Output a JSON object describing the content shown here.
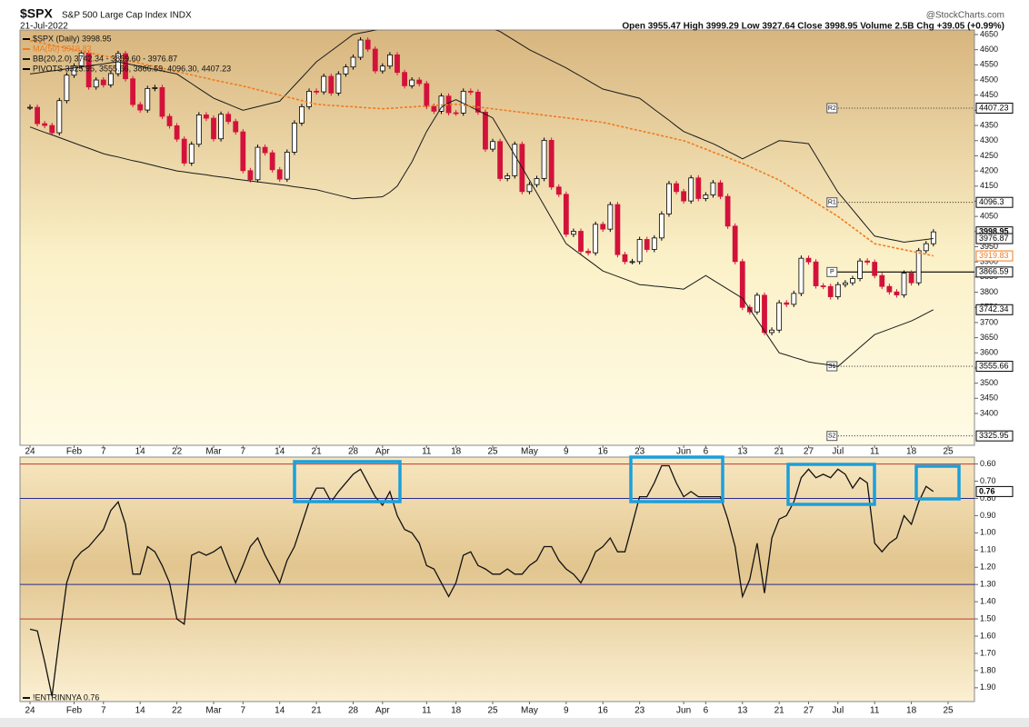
{
  "header": {
    "symbol": "$SPX",
    "name": "S&P 500 Large Cap Index INDX",
    "date": "21-Jul-2022",
    "quote": "Open 3955.47 High 3999.29 Low 3927.64 Close 3998.95 Volume 2.5B Chg +39.05 (+0.99%)",
    "brand": "@StockCharts.com"
  },
  "chart_data": [
    {
      "type": "candlestick",
      "categories": [
        "24",
        null,
        null,
        null,
        null,
        null,
        "Feb",
        null,
        null,
        null,
        "7",
        null,
        null,
        null,
        null,
        "14",
        null,
        null,
        null,
        null,
        "22",
        null,
        null,
        null,
        null,
        "Mar",
        null,
        null,
        null,
        "7",
        null,
        null,
        null,
        null,
        "14",
        null,
        null,
        null,
        null,
        "21",
        null,
        null,
        null,
        null,
        "28",
        null,
        null,
        null,
        "Apr",
        null,
        null,
        null,
        null,
        null,
        "11",
        null,
        null,
        null,
        "18",
        null,
        null,
        null,
        null,
        "25",
        null,
        null,
        null,
        null,
        "May",
        null,
        null,
        null,
        null,
        "9",
        null,
        null,
        null,
        null,
        "16",
        null,
        null,
        null,
        null,
        "23",
        null,
        null,
        null,
        null,
        null,
        "Jun",
        null,
        null,
        "6",
        null,
        null,
        null,
        null,
        "13",
        null,
        null,
        null,
        null,
        "21",
        null,
        null,
        null,
        "27",
        null,
        null,
        null,
        "Jul",
        null,
        null,
        null,
        null,
        "11",
        null,
        null,
        null,
        null,
        "18",
        null,
        null,
        null,
        null,
        "25"
      ],
      "series": [
        {
          "name": "$SPX (Daily) 3998.95",
          "color": "#000000",
          "down_color": "#d3123b",
          "up_color": "#ffffff",
          "values": [
            4410,
            4356,
            4350,
            4326,
            4432,
            4516,
            4546,
            4589,
            4477,
            4500,
            4484,
            4521,
            4587,
            4504,
            4419,
            4401,
            4472,
            4475,
            4380,
            4349,
            4305,
            4226,
            4288,
            4385,
            4374,
            4306,
            4387,
            4363,
            4329,
            4201,
            4171,
            4278,
            4260,
            4204,
            4173,
            4262,
            4358,
            4412,
            4463,
            4461,
            4512,
            4457,
            4520,
            4543,
            4575,
            4632,
            4602,
            4530,
            4546,
            4583,
            4525,
            4481,
            4500,
            4488,
            4413,
            4397,
            4447,
            4392,
            4391,
            4463,
            4460,
            4394,
            4272,
            4297,
            4175,
            4184,
            4288,
            4132,
            4155,
            4175,
            4301,
            4147,
            4123,
            3991,
            4001,
            3935,
            3930,
            4024,
            4008,
            4089,
            3924,
            3901,
            3901,
            3974,
            3941,
            3979,
            4058,
            4158,
            4132,
            4101,
            4177,
            4109,
            4121,
            4161,
            4116,
            4018,
            3901,
            3750,
            3735,
            3790,
            3667,
            3675,
            3765,
            3760,
            3796,
            3912,
            3900,
            3821,
            3819,
            3785,
            3825,
            3831,
            3845,
            3903,
            3899,
            3855,
            3819,
            3801,
            3791,
            3863,
            3831,
            3937,
            3960,
            3998.95,
            null,
            null
          ]
        },
        {
          "name": "MA(50) 3919.83",
          "color": "#f07b1f",
          "values": [
            4630,
            4625,
            4620,
            4615,
            4610,
            4605,
            4600,
            4595,
            4590,
            4585,
            4580,
            4575,
            4570,
            4565,
            4560,
            4555,
            4550,
            4544,
            4539,
            4533,
            4528,
            4522,
            4517,
            4511,
            4506,
            4500,
            4495,
            4490,
            4485,
            4480,
            4474,
            4468,
            4462,
            4456,
            4450,
            4444,
            4438,
            4432,
            4426,
            4420,
            4418,
            4416,
            4415,
            4413,
            4412,
            4410,
            4408,
            4407,
            4405,
            4407,
            4408,
            4410,
            4411,
            4413,
            4414,
            4416,
            4417,
            4419,
            4420,
            4417,
            4414,
            4411,
            4408,
            4405,
            4402,
            4399,
            4396,
            4393,
            4390,
            4387,
            4384,
            4381,
            4378,
            4375,
            4372,
            4369,
            4366,
            4363,
            4360,
            4355,
            4349,
            4344,
            4338,
            4333,
            4327,
            4322,
            4316,
            4311,
            4305,
            4300,
            4291,
            4281,
            4272,
            4262,
            4253,
            4244,
            4234,
            4225,
            4214,
            4203,
            4192,
            4181,
            4170,
            4155,
            4140,
            4125,
            4110,
            4095,
            4080,
            4065,
            4050,
            4032,
            4014,
            3996,
            3978,
            3960,
            3955,
            3950,
            3945,
            3940,
            3935,
            3930,
            3925,
            3919.83,
            null,
            null
          ]
        },
        {
          "name": "BB(20,2.0) 3742.34 - 3859.60 - 3976.87",
          "color": "#1a1a1a",
          "values": [
            4520,
            4523,
            4527,
            4530,
            4533,
            4537,
            4540,
            4543,
            4547,
            4550,
            4553,
            4557,
            4560,
            4555,
            4550,
            4545,
            4540,
            4535,
            4530,
            4525,
            4520,
            4504,
            4488,
            4472,
            4456,
            4440,
            4430,
            4420,
            4410,
            4400,
            4406,
            4412,
            4418,
            4424,
            4430,
            4456,
            4482,
            4508,
            4534,
            4560,
            4578,
            4596,
            4614,
            4632,
            4650,
            4655,
            4660,
            4665,
            4670,
            4670,
            4670,
            4670,
            4670,
            4670,
            4670,
            4670,
            4670,
            4670,
            4670,
            4670,
            4670,
            4670,
            4670,
            4670,
            4660,
            4645,
            4630,
            4615,
            4600,
            4588,
            4576,
            4564,
            4552,
            4540,
            4526,
            4512,
            4498,
            4484,
            4470,
            4464,
            4458,
            4452,
            4446,
            4440,
            4422,
            4403,
            4385,
            4367,
            4348,
            4330,
            4320,
            4310,
            4300,
            4290,
            4278,
            4265,
            4253,
            4240,
            4252,
            4264,
            4276,
            4288,
            4300,
            4298,
            4295,
            4293,
            4290,
            4250,
            4210,
            4170,
            4130,
            4101,
            4072,
            4043,
            4014,
            3985,
            3980,
            3975,
            3970,
            3965,
            3968,
            3971,
            3974,
            3976.87,
            null,
            null
          ],
          "lower": [
            4345,
            4336,
            4327,
            4319,
            4310,
            4301,
            4292,
            4283,
            4275,
            4266,
            4257,
            4251,
            4246,
            4240,
            4234,
            4229,
            4223,
            4217,
            4211,
            4206,
            4200,
            4197,
            4193,
            4190,
            4187,
            4183,
            4180,
            4177,
            4173,
            4170,
            4167,
            4164,
            4161,
            4158,
            4155,
            4152,
            4148,
            4145,
            4141,
            4138,
            4132,
            4126,
            4120,
            4114,
            4108,
            4110,
            4112,
            4113,
            4115,
            4130,
            4150,
            4190,
            4230,
            4280,
            4330,
            4370,
            4410,
            4425,
            4435,
            4423,
            4411,
            4399,
            4387,
            4375,
            4334,
            4293,
            4252,
            4211,
            4170,
            4128,
            4086,
            4044,
            4002,
            3960,
            3942,
            3924,
            3906,
            3888,
            3870,
            3861,
            3852,
            3843,
            3834,
            3825,
            3823,
            3820,
            3818,
            3815,
            3813,
            3810,
            3825,
            3840,
            3855,
            3840,
            3825,
            3810,
            3795,
            3780,
            3744,
            3708,
            3672,
            3636,
            3600,
            3593,
            3585,
            3578,
            3570,
            3566,
            3563,
            3559,
            3555,
            3576,
            3597,
            3618,
            3639,
            3660,
            3669,
            3678,
            3687,
            3696,
            3705,
            3717,
            3730,
            3742.34,
            null,
            null
          ]
        }
      ],
      "pivots": {
        "name": "PIVOTS 3325.95, 3555.66, 3866.59, 4096.30, 4407.23",
        "labels": [
          "S2",
          "S1",
          "P",
          "R1",
          "R2"
        ],
        "values": [
          3325.95,
          3555.66,
          3866.59,
          4096.3,
          4407.23
        ],
        "color": "#000000"
      },
      "ylim": [
        3295,
        4665
      ],
      "yticks": [
        3400,
        3450,
        3500,
        3550,
        3600,
        3650,
        3700,
        3750,
        3800,
        3850,
        3900,
        3950,
        4000,
        4050,
        4100,
        4150,
        4200,
        4250,
        4300,
        4350,
        4400,
        4450,
        4500,
        4550,
        4600,
        4650
      ]
    },
    {
      "type": "line",
      "categories": [
        "24",
        null,
        null,
        null,
        null,
        null,
        "Feb",
        null,
        null,
        null,
        "7",
        null,
        null,
        null,
        null,
        "14",
        null,
        null,
        null,
        null,
        "22",
        null,
        null,
        null,
        null,
        "Mar",
        null,
        null,
        null,
        "7",
        null,
        null,
        null,
        null,
        "14",
        null,
        null,
        null,
        null,
        "21",
        null,
        null,
        null,
        null,
        "28",
        null,
        null,
        null,
        "Apr",
        null,
        null,
        null,
        null,
        null,
        "11",
        null,
        null,
        null,
        "18",
        null,
        null,
        null,
        null,
        "25",
        null,
        null,
        null,
        null,
        "May",
        null,
        null,
        null,
        null,
        "9",
        null,
        null,
        null,
        null,
        "16",
        null,
        null,
        null,
        null,
        "23",
        null,
        null,
        null,
        null,
        null,
        "Jun",
        null,
        null,
        "6",
        null,
        null,
        null,
        null,
        "13",
        null,
        null,
        null,
        null,
        "21",
        null,
        null,
        null,
        "27",
        null,
        null,
        null,
        "Jul",
        null,
        null,
        null,
        null,
        "11",
        null,
        null,
        null,
        null,
        "18",
        null,
        null,
        null,
        null,
        "25"
      ],
      "series": [
        {
          "name": "!ENTRINNYA 0.76",
          "color": "#111111",
          "values": [
            1.56,
            1.57,
            1.75,
            1.95,
            1.61,
            1.29,
            1.16,
            1.11,
            1.08,
            1.03,
            0.98,
            0.87,
            0.82,
            0.95,
            1.24,
            1.24,
            1.08,
            1.11,
            1.19,
            1.29,
            1.5,
            1.53,
            1.13,
            1.11,
            1.13,
            1.11,
            1.08,
            1.19,
            1.29,
            1.19,
            1.08,
            1.03,
            1.13,
            1.21,
            1.29,
            1.16,
            1.08,
            0.95,
            0.82,
            0.74,
            0.74,
            0.82,
            0.76,
            0.71,
            0.66,
            0.63,
            0.71,
            0.79,
            0.84,
            0.76,
            0.9,
            0.98,
            1.0,
            1.06,
            1.19,
            1.21,
            1.29,
            1.37,
            1.29,
            1.13,
            1.11,
            1.19,
            1.21,
            1.24,
            1.24,
            1.21,
            1.24,
            1.24,
            1.19,
            1.16,
            1.08,
            1.08,
            1.16,
            1.21,
            1.24,
            1.29,
            1.21,
            1.11,
            1.08,
            1.03,
            1.11,
            1.11,
            0.95,
            0.79,
            0.79,
            0.71,
            0.61,
            0.61,
            0.71,
            0.79,
            0.76,
            0.79,
            0.79,
            0.79,
            0.79,
            0.92,
            1.08,
            1.37,
            1.27,
            1.06,
            1.35,
            1.03,
            0.92,
            0.9,
            0.82,
            0.68,
            0.63,
            0.68,
            0.66,
            0.68,
            0.63,
            0.66,
            0.74,
            0.68,
            0.71,
            1.06,
            1.11,
            1.06,
            1.03,
            0.9,
            0.95,
            0.82,
            0.73,
            0.76,
            null,
            null
          ]
        }
      ],
      "ref_lines": [
        {
          "value": 0.6,
          "color": "#c0392b"
        },
        {
          "value": 0.8,
          "color": "#2a2a8a"
        },
        {
          "value": 1.3,
          "color": "#2a2a8a"
        },
        {
          "value": 1.5,
          "color": "#c0392b"
        }
      ],
      "ylim": [
        0.56,
        1.98
      ],
      "inverted": true,
      "yticks": [
        {
          "value": 0.6,
          "label": "0.60"
        },
        {
          "value": 0.7,
          "label": "0.70"
        },
        {
          "value": 0.8,
          "label": "0.80"
        },
        {
          "value": 0.9,
          "label": "0.90"
        },
        {
          "value": 1.0,
          "label": "1.00"
        },
        {
          "value": 1.1,
          "label": "1.10"
        },
        {
          "value": 1.2,
          "label": "1.20"
        },
        {
          "value": 1.3,
          "label": "1.30"
        },
        {
          "value": 1.4,
          "label": "1.40"
        },
        {
          "value": 1.5,
          "label": "1.50"
        },
        {
          "value": 1.6,
          "label": "1.60"
        },
        {
          "value": 1.7,
          "label": "1.70"
        },
        {
          "value": 1.8,
          "label": "1.80"
        },
        {
          "value": 1.9,
          "label": "1.90"
        }
      ]
    }
  ]
}
